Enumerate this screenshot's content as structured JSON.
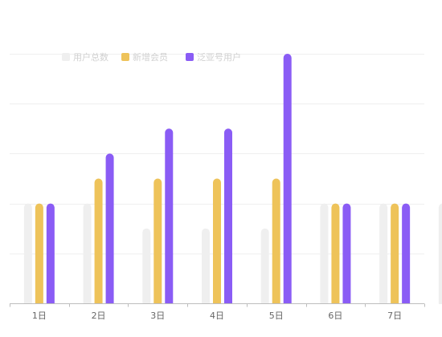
{
  "chart_data": {
    "type": "bar",
    "title": "",
    "xlabel": "",
    "ylabel": "",
    "ylim": [
      0,
      5
    ],
    "grid": true,
    "legend_position": "top-left",
    "categories": [
      "1日",
      "2日",
      "3日",
      "4日",
      "5日",
      "6日",
      "7日"
    ],
    "series": [
      {
        "name": "用户总数",
        "color": "#efefef",
        "values": [
          2,
          2,
          1.5,
          1.5,
          1.5,
          2,
          2
        ]
      },
      {
        "name": "新增会员",
        "color": "#eec35a",
        "values": [
          2,
          2.5,
          2.5,
          2.5,
          2.5,
          2,
          2
        ]
      },
      {
        "name": "泛亚号用户",
        "color": "#8a5cf5",
        "values": [
          2,
          3,
          3.5,
          3.5,
          5,
          2,
          2
        ]
      }
    ],
    "partial_next_bar": {
      "series": "用户总数",
      "value": 2
    }
  }
}
